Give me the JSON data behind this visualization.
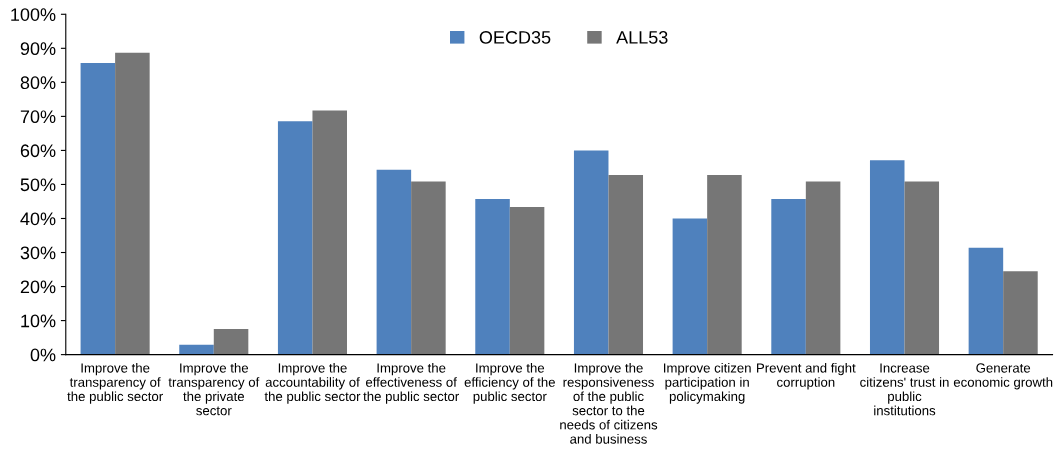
{
  "chart_data": {
    "type": "bar",
    "categories": [
      "Improve the\ntransparency of\nthe public sector",
      "Improve the\ntransparency of\nthe private\nsector",
      "Improve the\naccountability of\nthe public sector",
      "Improve the\neffectiveness of\nthe public sector",
      "Improve the\nefficiency of the\npublic sector",
      "Improve the\nresponsiveness\nof the public\nsector to the\nneeds of citizens\nand business",
      "Improve citizen\nparticipation in\npolicymaking",
      "Prevent and fight\ncorruption",
      "Increase\ncitizens' trust in\npublic\ninstitutions",
      "Generate\neconomic growth"
    ],
    "series": [
      {
        "name": "OECD35",
        "color": "#4f81bd",
        "values": [
          85.7,
          2.9,
          68.6,
          54.3,
          45.7,
          60.0,
          40.0,
          45.7,
          57.1,
          31.4
        ]
      },
      {
        "name": "ALL53",
        "color": "#767676",
        "values": [
          88.7,
          7.5,
          71.7,
          50.9,
          43.4,
          52.8,
          52.8,
          50.9,
          50.9,
          24.5
        ]
      }
    ],
    "ylim": [
      0,
      100
    ],
    "yticks": [
      {
        "value": 0,
        "label": "0%"
      },
      {
        "value": 10,
        "label": "10%"
      },
      {
        "value": 20,
        "label": "20%"
      },
      {
        "value": 30,
        "label": "30%"
      },
      {
        "value": 40,
        "label": "40%"
      },
      {
        "value": 50,
        "label": "50%"
      },
      {
        "value": 60,
        "label": "60%"
      },
      {
        "value": 70,
        "label": "70%"
      },
      {
        "value": 80,
        "label": "80%"
      },
      {
        "value": 90,
        "label": "90%"
      },
      {
        "value": 100,
        "label": "100%"
      }
    ],
    "grid": false,
    "legend": "top"
  }
}
